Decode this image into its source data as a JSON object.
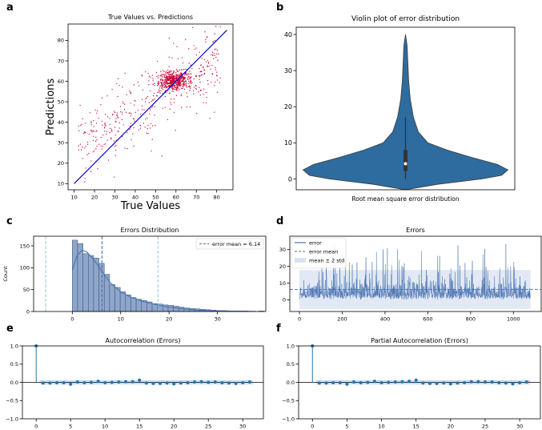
{
  "figure": {
    "panel_labels": [
      "a",
      "b",
      "c",
      "d",
      "e",
      "f"
    ]
  },
  "chart_data": [
    {
      "panel": "a",
      "type": "scatter",
      "title": "True Values vs. Predictions",
      "xlabel": "True Values",
      "ylabel": "Predictions",
      "xlim": [
        7,
        88
      ],
      "ylim": [
        7,
        88
      ],
      "xticks": [
        10,
        20,
        30,
        40,
        50,
        60,
        70,
        80
      ],
      "yticks": [
        10,
        20,
        30,
        40,
        50,
        60,
        70,
        80
      ],
      "reference_line": {
        "x": [
          10,
          85
        ],
        "y": [
          10,
          85
        ],
        "color": "#0000cc"
      },
      "point_color": "#cc0033",
      "points_note": "≈1000 points; dense cluster near (58,60), broad spread along diagonal"
    },
    {
      "panel": "b",
      "type": "violin",
      "title": "Violin plot of error distribution",
      "xlabel": "Root mean square error distribution",
      "ylim": [
        -3,
        42
      ],
      "yticks": [
        0,
        10,
        20,
        30,
        40
      ],
      "color": "#2e6b9e",
      "extent": [
        -3,
        40
      ],
      "quartiles": [
        2.2,
        4.2,
        8.0
      ],
      "whisker": [
        0,
        17
      ]
    },
    {
      "panel": "c",
      "type": "histogram",
      "title": "Errors Distribution",
      "ylabel": "Count",
      "xlim": [
        -8,
        40
      ],
      "ylim": [
        0,
        172
      ],
      "xticks": [
        0,
        10,
        20,
        30
      ],
      "yticks": [
        0,
        50,
        100,
        150
      ],
      "bin_width": 1.1,
      "bin_start": 0,
      "counts": [
        163,
        155,
        132,
        128,
        122,
        110,
        85,
        62,
        55,
        45,
        38,
        32,
        28,
        25,
        22,
        18,
        17,
        15,
        14,
        12,
        10,
        8,
        7,
        6,
        5,
        4,
        3,
        2,
        2,
        1,
        1,
        1,
        1,
        0,
        0,
        1
      ],
      "color": "#8fa6c8",
      "kde_color": "#4a73b2",
      "mean": 6.14,
      "std_lines": [
        -5.5,
        17.7
      ],
      "legend": {
        "label": "error mean =  6.14",
        "position": "top-right"
      }
    },
    {
      "panel": "d",
      "type": "line",
      "title": "Errors",
      "xlim": [
        -45,
        1130
      ],
      "ylim": [
        -7,
        38
      ],
      "xticks": [
        0,
        200,
        400,
        600,
        800,
        1000
      ],
      "yticks": [
        0,
        10,
        20,
        30
      ],
      "n": 1080,
      "mean": 6.14,
      "band": [
        -5.5,
        17.8
      ],
      "color": "#4a73b2",
      "legend": [
        "error",
        "error mean",
        "mean ± 2 std"
      ],
      "legend_position": "top-left"
    },
    {
      "panel": "e",
      "type": "stem",
      "title": "Autocorrelation (Errors)",
      "xlim": [
        -2,
        33
      ],
      "ylim": [
        -1,
        1
      ],
      "xticks": [
        0,
        5,
        10,
        15,
        20,
        25,
        30
      ],
      "yticks": [
        -1.0,
        -0.5,
        0.0,
        0.5,
        1.0
      ],
      "ytick_labels": [
        "−1.0",
        "−0.5",
        "0.0",
        "0.5",
        "1.0"
      ],
      "lags": [
        0,
        1,
        2,
        3,
        4,
        5,
        6,
        7,
        8,
        9,
        10,
        11,
        12,
        13,
        14,
        15,
        16,
        17,
        18,
        19,
        20,
        21,
        22,
        23,
        24,
        25,
        26,
        27,
        28,
        29,
        30,
        31
      ],
      "values": [
        1.0,
        -0.02,
        -0.02,
        -0.01,
        -0.01,
        -0.05,
        0.01,
        -0.01,
        0.0,
        0.03,
        -0.01,
        0.0,
        0.01,
        0.02,
        0.02,
        0.06,
        -0.02,
        -0.03,
        -0.03,
        -0.02,
        -0.04,
        -0.02,
        -0.01,
        0.01,
        0.02,
        0.0,
        0.01,
        -0.01,
        -0.02,
        -0.03,
        -0.01,
        0.01
      ],
      "conf_band": 0.06,
      "color": "#1f77b4"
    },
    {
      "panel": "f",
      "type": "stem",
      "title": "Partial Autocorrelation (Errors)",
      "xlim": [
        -2,
        33
      ],
      "ylim": [
        -1,
        1
      ],
      "xticks": [
        0,
        5,
        10,
        15,
        20,
        25,
        30
      ],
      "yticks": [
        -1.0,
        -0.5,
        0.0,
        0.5,
        1.0
      ],
      "ytick_labels": [
        "−1.0",
        "−0.5",
        "0.0",
        "0.5",
        "1.0"
      ],
      "lags": [
        0,
        1,
        2,
        3,
        4,
        5,
        6,
        7,
        8,
        9,
        10,
        11,
        12,
        13,
        14,
        15,
        16,
        17,
        18,
        19,
        20,
        21,
        22,
        23,
        24,
        25,
        26,
        27,
        28,
        29,
        30,
        31
      ],
      "values": [
        1.0,
        -0.02,
        -0.02,
        -0.01,
        -0.01,
        -0.05,
        0.01,
        -0.01,
        0.0,
        0.03,
        -0.01,
        0.0,
        0.01,
        0.02,
        0.03,
        0.06,
        -0.02,
        -0.03,
        -0.03,
        -0.02,
        -0.04,
        -0.02,
        -0.01,
        0.02,
        0.02,
        0.01,
        0.01,
        -0.01,
        -0.02,
        -0.04,
        -0.01,
        0.01
      ],
      "conf_band": 0.06,
      "color": "#1f77b4"
    }
  ]
}
